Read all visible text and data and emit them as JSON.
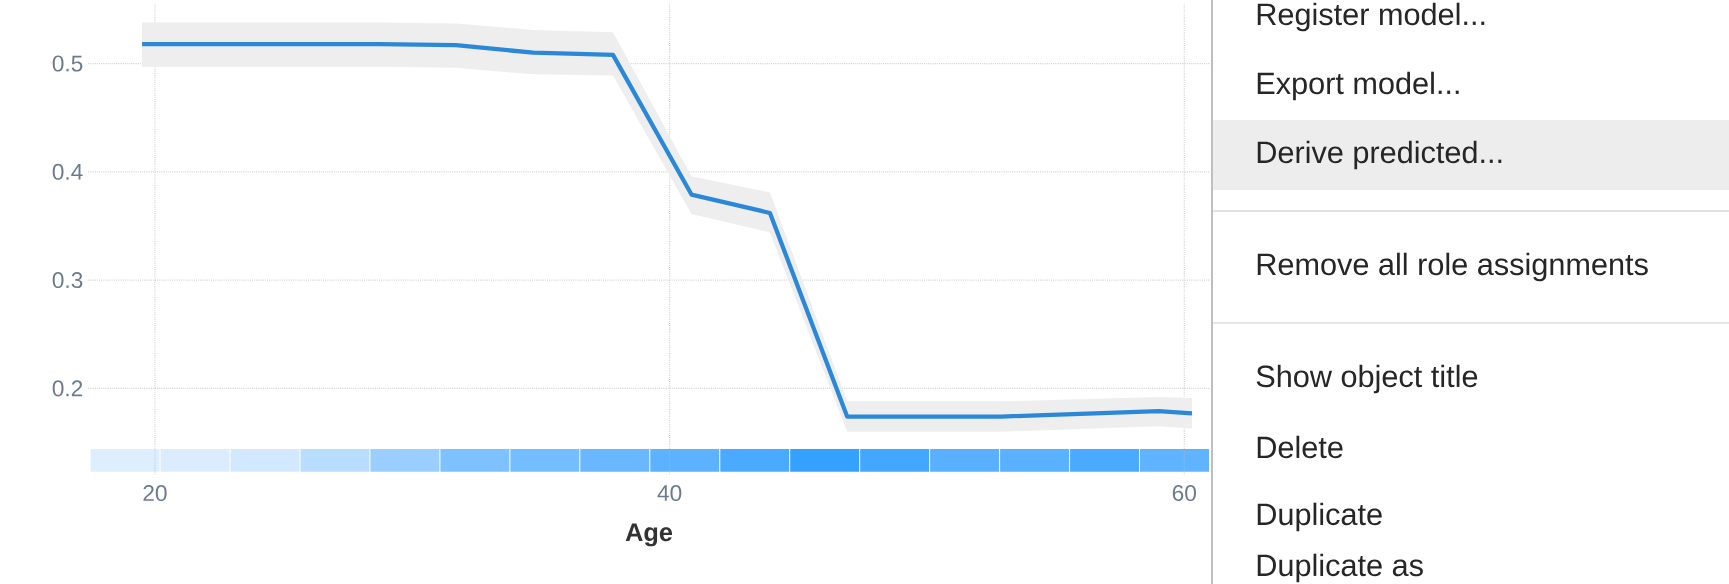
{
  "chart_data": [
    {
      "type": "line",
      "xlabel": "Age",
      "x": [
        19.5,
        28.75,
        31.7,
        34.7,
        37.8,
        40.85,
        43.9,
        46.9,
        52.9,
        59.0,
        60.3
      ],
      "series": [
        {
          "color": "#2b88d8",
          "values": [
            0.518,
            0.518,
            0.517,
            0.51,
            0.508,
            0.379,
            0.362,
            0.174,
            0.174,
            0.179,
            0.177
          ],
          "lower": [
            0.497,
            0.497,
            0.496,
            0.49,
            0.489,
            0.361,
            0.344,
            0.16,
            0.16,
            0.165,
            0.163
          ],
          "upper": [
            0.538,
            0.538,
            0.537,
            0.531,
            0.529,
            0.396,
            0.381,
            0.188,
            0.188,
            0.192,
            0.191
          ]
        }
      ],
      "xlim": [
        17.4,
        61
      ],
      "ylim": [
        0.12,
        0.555
      ],
      "xticks": [
        20,
        40,
        60
      ],
      "yticks": [
        0.2,
        0.3,
        0.4,
        0.5
      ],
      "grid": true
    },
    {
      "type": "other",
      "annotations": [
        "Register model...",
        "Export model...",
        "Derive predicted...",
        "Remove all role assignments",
        "Show object title",
        "Delete",
        "Duplicate",
        "Duplicate as"
      ]
    }
  ]
}
